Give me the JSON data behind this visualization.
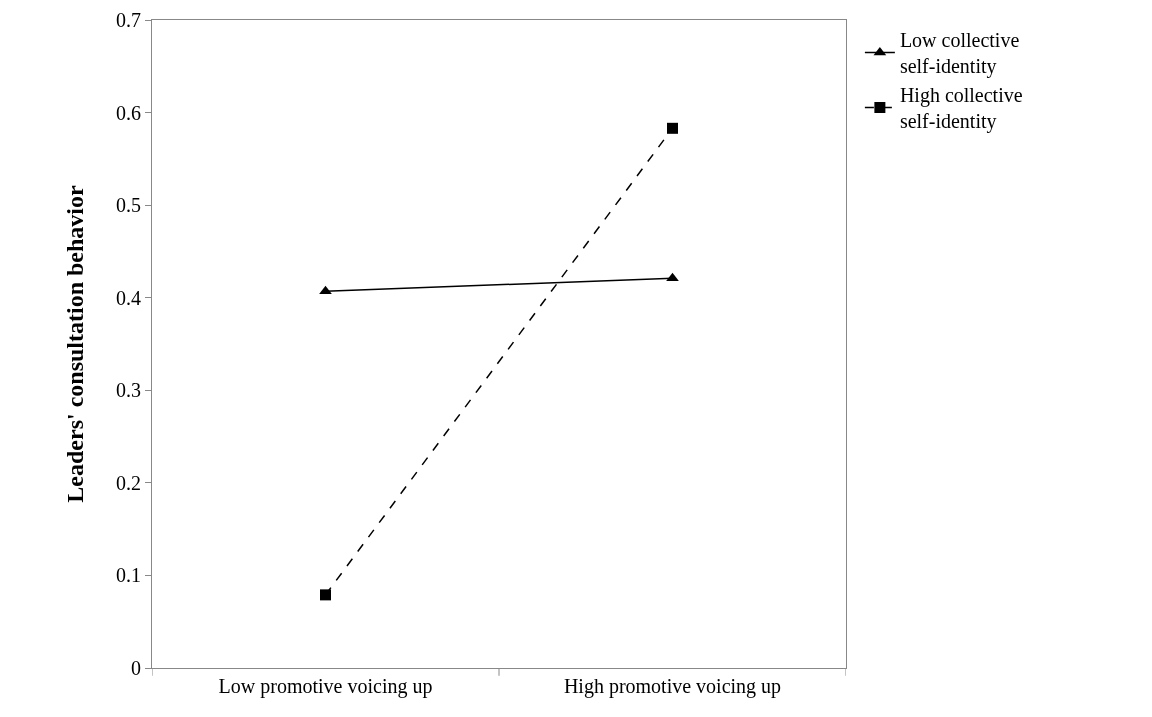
{
  "chart_data": {
    "type": "line",
    "ylabel": "Leaders' consultation behavior",
    "categories": [
      "Low promotive voicing up",
      "High promotive voicing up"
    ],
    "series": [
      {
        "name": "Low collective self-identity",
        "color": "#000000",
        "values": [
          0.407,
          0.421
        ],
        "marker": "triangle",
        "line_style": "solid"
      },
      {
        "name": "High collective self-identity",
        "color": "#000000",
        "values": [
          0.079,
          0.583
        ],
        "marker": "square",
        "line_style": "dashed"
      }
    ],
    "ylim": [
      0,
      0.7
    ],
    "yticks": [
      {
        "value": 0,
        "label": "0"
      },
      0.1,
      0.2,
      0.3,
      0.4,
      0.5,
      0.6,
      0.7
    ],
    "grid": false,
    "legend": "top right"
  }
}
